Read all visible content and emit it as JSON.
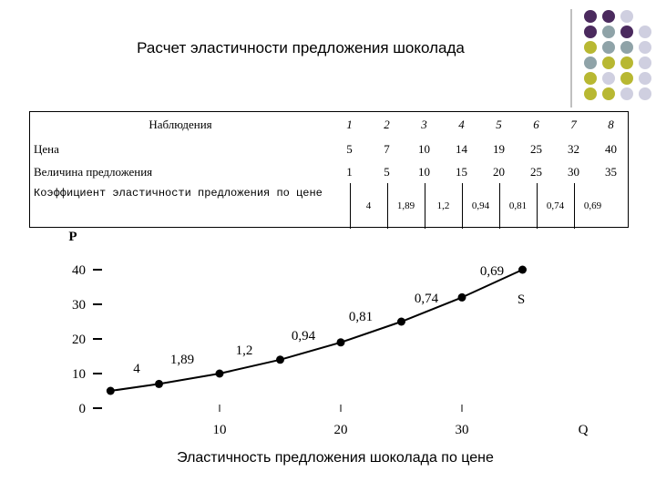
{
  "title": "Расчет эластичности предложения шоколада",
  "table": {
    "header": [
      "Наблюдения",
      "1",
      "2",
      "3",
      "4",
      "5",
      "6",
      "7",
      "8"
    ],
    "rows": [
      [
        "Цена",
        "5",
        "7",
        "10",
        "14",
        "19",
        "25",
        "32",
        "40"
      ],
      [
        "Величина предложения",
        "1",
        "5",
        "10",
        "15",
        "20",
        "25",
        "30",
        "35"
      ],
      [
        "Коэффициент эластичности предложения по цене",
        "4",
        "1,89",
        "1,2",
        "0,94",
        "0,81",
        "0,74",
        "0,69"
      ]
    ]
  },
  "chart_data": {
    "type": "line",
    "x": [
      1,
      5,
      10,
      15,
      20,
      25,
      30,
      35
    ],
    "values": [
      5,
      7,
      10,
      14,
      19,
      25,
      32,
      40
    ],
    "color": "#000000",
    "xlim": [
      0,
      40
    ],
    "ylim": [
      0,
      50
    ],
    "xticks": [
      10,
      20,
      30
    ],
    "yticks": [
      0,
      10,
      20,
      30,
      40
    ],
    "xlabel": "Q",
    "ylabel": "P",
    "series_label": "S",
    "annotations": [
      "4",
      "1,89",
      "1,2",
      "0,94",
      "0,81",
      "0,74",
      "0,69"
    ],
    "caption": "Эластичность предложения шоколада по цене"
  }
}
